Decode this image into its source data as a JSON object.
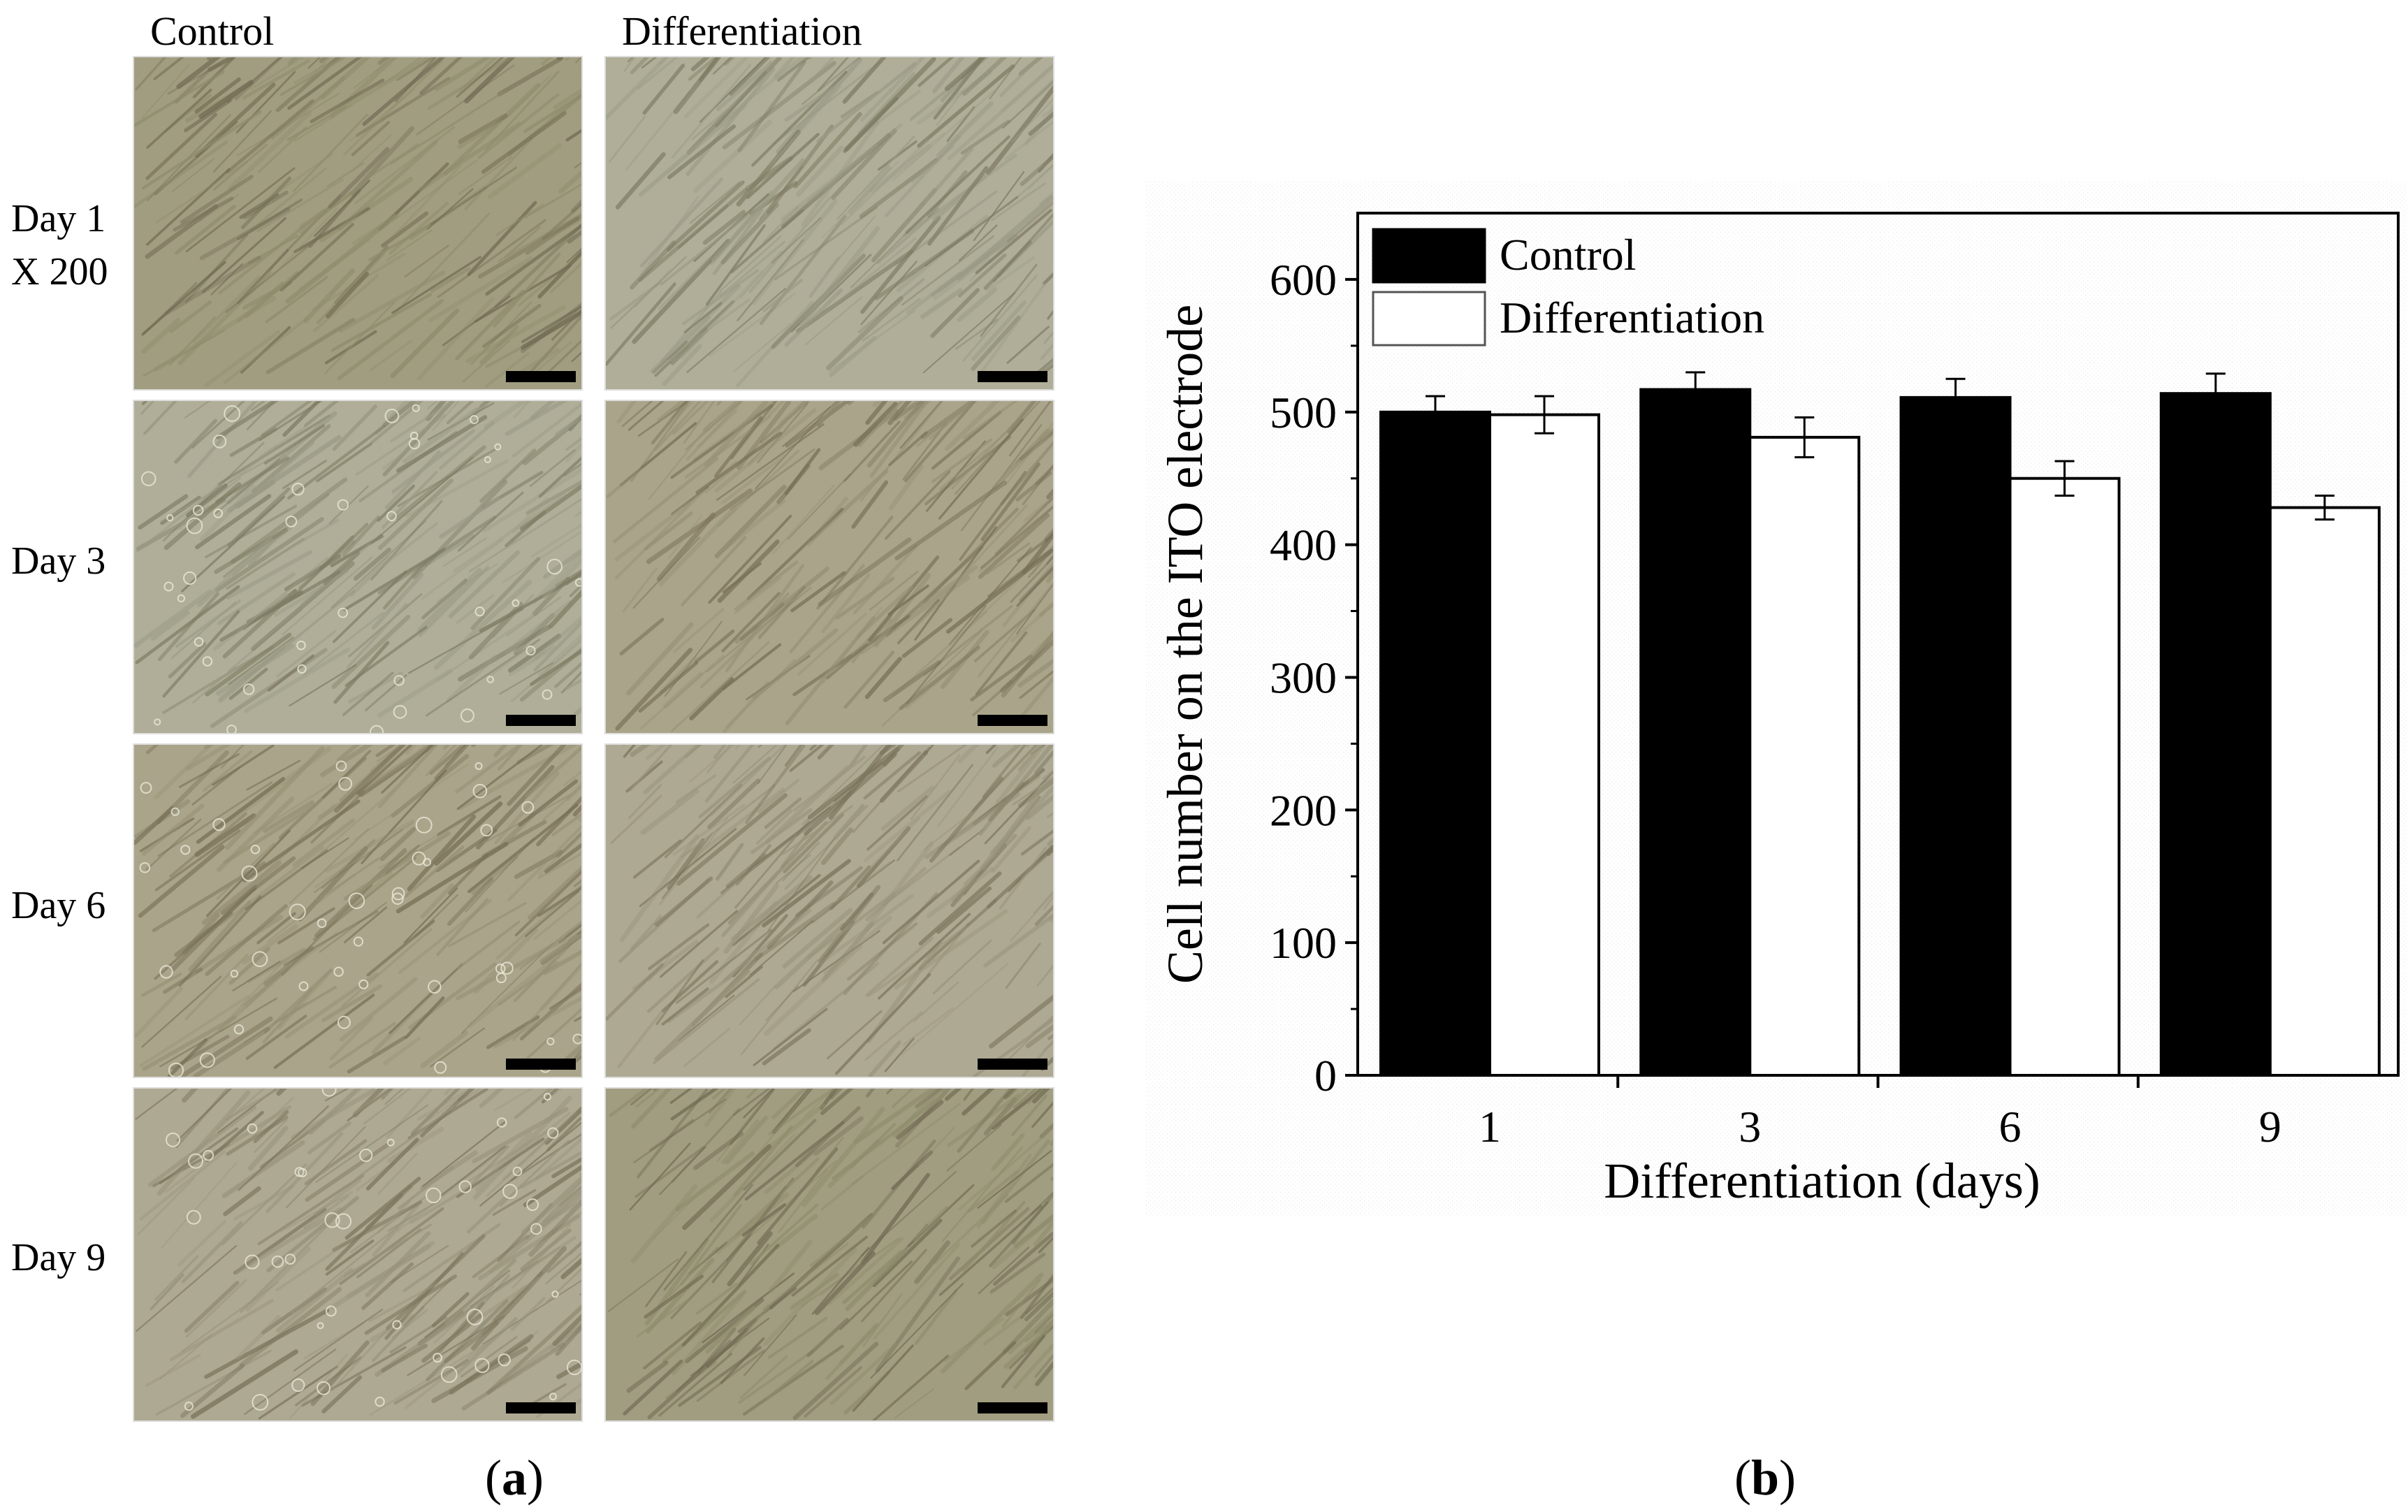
{
  "panel_a": {
    "column_headers": [
      "Control",
      "Differentiation"
    ],
    "row_labels": [
      {
        "line1": "Day 1",
        "line2": "X 200"
      },
      {
        "line1": "Day 3",
        "line2": ""
      },
      {
        "line1": "Day 6",
        "line2": ""
      },
      {
        "line1": "Day 9",
        "line2": ""
      }
    ],
    "panel_label": "a"
  },
  "panel_b": {
    "panel_label": "b"
  },
  "colors": {
    "control": "#000000",
    "differentiation": "#ffffff"
  },
  "chart_data": {
    "type": "bar",
    "categories": [
      "1",
      "3",
      "6",
      "9"
    ],
    "series": [
      {
        "name": "Control",
        "values": [
          500,
          517,
          511,
          514
        ],
        "errors": [
          12,
          13,
          14,
          15
        ],
        "color": "#000000"
      },
      {
        "name": "Differentiation",
        "values": [
          498,
          481,
          450,
          428
        ],
        "errors": [
          14,
          15,
          13,
          9
        ],
        "color": "#ffffff"
      }
    ],
    "title": "",
    "xlabel": "Differentiation (days)",
    "ylabel": "Cell number on the ITO electrode",
    "ylim": [
      0,
      650
    ],
    "yticks": [
      0,
      100,
      200,
      300,
      400,
      500,
      600
    ],
    "grid": false,
    "legend_position": "top-left"
  }
}
